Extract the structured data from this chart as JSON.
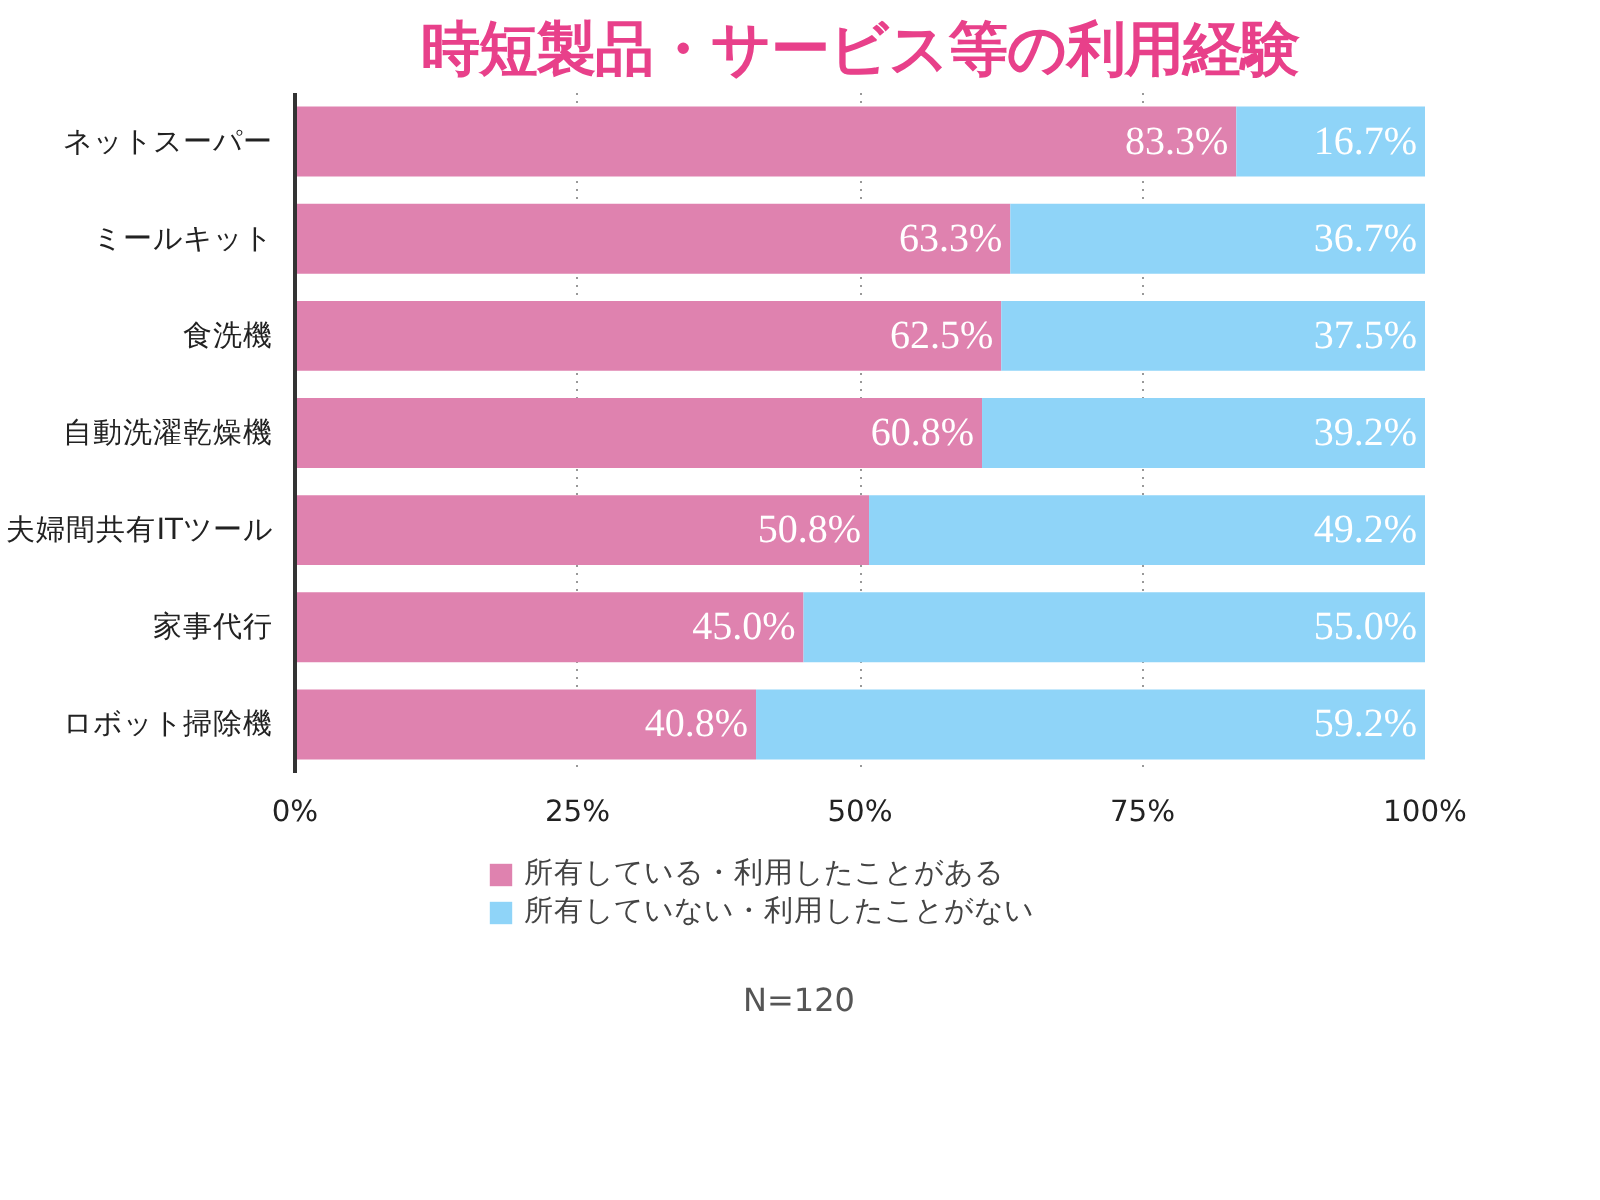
{
  "chart_data": {
    "type": "bar",
    "orientation": "horizontal",
    "stacked": true,
    "title": "時短製品・サービス等の利用経験",
    "categories": [
      "ネットスーパー",
      "ミールキット",
      "食洗機",
      "自動洗濯乾燥機",
      "夫婦間共有ITツール",
      "家事代行",
      "ロボット掃除機"
    ],
    "series": [
      {
        "name": "所有している・利用したことがある",
        "color": "#df82af",
        "values": [
          83.3,
          63.3,
          62.5,
          60.8,
          50.8,
          45.0,
          40.8
        ],
        "value_labels": [
          "83.3%",
          "63.3%",
          "62.5%",
          "60.8%",
          "50.8%",
          "45.0%",
          "40.8%"
        ]
      },
      {
        "name": "所有していない・利用したことがない",
        "color": "#8fd4f8",
        "values": [
          16.7,
          36.7,
          37.5,
          39.2,
          49.2,
          55.0,
          59.2
        ],
        "value_labels": [
          "16.7%",
          "36.7%",
          "37.5%",
          "39.2%",
          "49.2%",
          "55.0%",
          "59.2%"
        ]
      }
    ],
    "xlim": [
      0,
      100
    ],
    "xticks": [
      {
        "value": 0,
        "label": "0%"
      },
      {
        "value": 25,
        "label": "25%"
      },
      {
        "value": 50,
        "label": "50%"
      },
      {
        "value": 75,
        "label": "75%"
      },
      {
        "value": 100,
        "label": "100%"
      }
    ],
    "grid": "x",
    "legend": "bottom",
    "annotations": [
      "N=120"
    ]
  }
}
